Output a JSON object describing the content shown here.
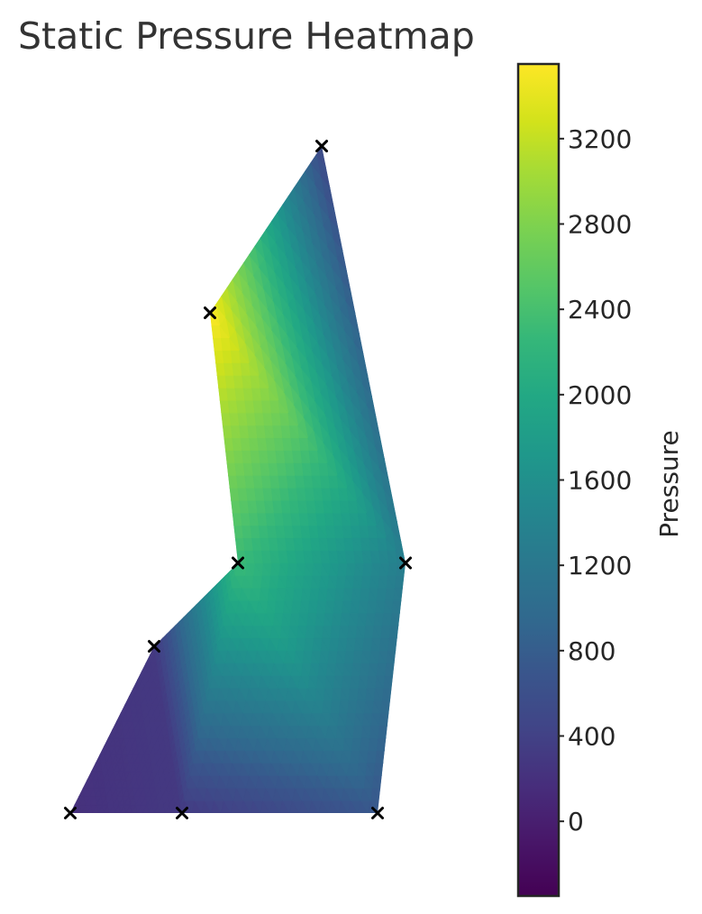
{
  "chart_data": {
    "type": "heatmap",
    "title": "Static Pressure Heatmap",
    "colormap": "viridis",
    "colorbar": {
      "label": "Pressure",
      "range": [
        -350,
        3550
      ],
      "ticks": [
        0,
        400,
        800,
        1200,
        1600,
        2000,
        2400,
        2800,
        3200
      ]
    },
    "axes_visible": false,
    "nodes": [
      {
        "x": 0.0,
        "y": 0.0,
        "pressure": 200
      },
      {
        "x": 1.0,
        "y": 0.0,
        "pressure": 300
      },
      {
        "x": 2.75,
        "y": 0.0,
        "pressure": 700
      },
      {
        "x": 0.75,
        "y": 1.5,
        "pressure": 300
      },
      {
        "x": 1.5,
        "y": 2.25,
        "pressure": 2300
      },
      {
        "x": 3.0,
        "y": 2.25,
        "pressure": 1300
      },
      {
        "x": 1.25,
        "y": 4.5,
        "pressure": 3550
      },
      {
        "x": 2.25,
        "y": 6.0,
        "pressure": 500
      }
    ],
    "marker": "x",
    "marker_color": "#000000"
  }
}
